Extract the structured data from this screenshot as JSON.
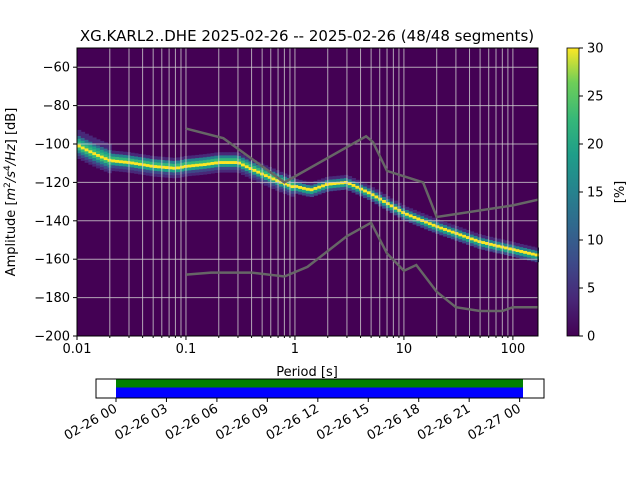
{
  "title": "XG.KARL2..DHE   2025-02-26 -- 2025-02-26  (48/48 segments)",
  "chart_data": {
    "type": "heatmap",
    "title": "XG.KARL2..DHE   2025-02-26 -- 2025-02-26  (48/48 segments)",
    "xlabel": "Period [s]",
    "ylabel": "Amplitude [m²/s⁴/Hz] [dB]",
    "ylabel_parts": {
      "prefix": "Amplitude [",
      "m": "m",
      "two": "2",
      "s": "/s",
      "four": "4",
      "hz": "/Hz",
      "suffix": "] [dB]"
    },
    "xscale": "log",
    "xlim": [
      0.01,
      170
    ],
    "ylim": [
      -200,
      -50
    ],
    "xticks": [
      {
        "v": 0.01,
        "label": "0.01"
      },
      {
        "v": 0.1,
        "label": "0.1"
      },
      {
        "v": 1,
        "label": "1"
      },
      {
        "v": 10,
        "label": "10"
      },
      {
        "v": 100,
        "label": "100"
      }
    ],
    "yticks": [
      {
        "v": -60,
        "label": "−60"
      },
      {
        "v": -80,
        "label": "−80"
      },
      {
        "v": -100,
        "label": "−100"
      },
      {
        "v": -120,
        "label": "−120"
      },
      {
        "v": -140,
        "label": "−140"
      },
      {
        "v": -160,
        "label": "−160"
      },
      {
        "v": -180,
        "label": "−180"
      },
      {
        "v": -200,
        "label": "−200"
      }
    ],
    "mode_curve": [
      [
        0.01,
        -100
      ],
      [
        0.015,
        -105
      ],
      [
        0.02,
        -108
      ],
      [
        0.03,
        -109
      ],
      [
        0.05,
        -111
      ],
      [
        0.08,
        -112
      ],
      [
        0.1,
        -111
      ],
      [
        0.15,
        -110
      ],
      [
        0.2,
        -109
      ],
      [
        0.3,
        -109
      ],
      [
        0.5,
        -115
      ],
      [
        0.8,
        -120
      ],
      [
        1.0,
        -122
      ],
      [
        1.4,
        -124
      ],
      [
        2,
        -121
      ],
      [
        3,
        -120
      ],
      [
        5,
        -126
      ],
      [
        10,
        -136
      ],
      [
        20,
        -143
      ],
      [
        50,
        -151
      ],
      [
        100,
        -155
      ],
      [
        170,
        -158
      ]
    ],
    "nhnm": [
      [
        0.1,
        -92
      ],
      [
        0.22,
        -97
      ],
      [
        0.8,
        -120
      ],
      [
        4.5,
        -96
      ],
      [
        5.2,
        -99
      ],
      [
        7,
        -114
      ],
      [
        15,
        -120
      ],
      [
        20,
        -138
      ],
      [
        100,
        -132
      ],
      [
        170,
        -129
      ]
    ],
    "nlnm": [
      [
        0.1,
        -168
      ],
      [
        0.17,
        -167
      ],
      [
        0.4,
        -167
      ],
      [
        0.8,
        -169
      ],
      [
        1.3,
        -164
      ],
      [
        3,
        -148
      ],
      [
        5,
        -141
      ],
      [
        7,
        -157
      ],
      [
        10,
        -166
      ],
      [
        13,
        -163
      ],
      [
        20,
        -177
      ],
      [
        30,
        -185
      ],
      [
        50,
        -187
      ],
      [
        80,
        -187
      ],
      [
        100,
        -185
      ],
      [
        170,
        -185
      ]
    ],
    "colorbar": {
      "label": "[%]",
      "min": 0,
      "max": 30,
      "ticks": [
        "0",
        "5",
        "10",
        "15",
        "20",
        "25",
        "30"
      ]
    },
    "timeline": {
      "ticks": [
        "02-26 00",
        "02-26 03",
        "02-26 06",
        "02-26 09",
        "02-26 12",
        "02-26 15",
        "02-26 18",
        "02-26 21",
        "02-27 00"
      ],
      "coverage_start_hours": 0,
      "coverage_end_hours": 24.2,
      "colors": {
        "data": "#008000",
        "used": "#0000ff"
      }
    }
  }
}
